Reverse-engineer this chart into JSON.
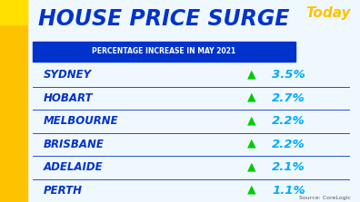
{
  "title": "HOUSE PRICE SURGE",
  "subtitle": "PERCENTAGE INCREASE IN MAY 2021",
  "cities": [
    "SYDNEY",
    "HOBART",
    "MELBOURNE",
    "BRISBANE",
    "ADELAIDE",
    "PERTH"
  ],
  "values": [
    "3.5%",
    "2.7%",
    "2.2%",
    "2.2%",
    "2.1%",
    "1.1%"
  ],
  "source": "Source: CoreLogic",
  "bg_color": "#f0f8ff",
  "left_bar_color": "#FFC200",
  "title_color": "#0033cc",
  "subtitle_bg": "#0033cc",
  "subtitle_text_color": "#ffffff",
  "city_color": "#0033cc",
  "value_color": "#00aaff",
  "arrow_color": "#00cc00",
  "today_color": "#FFC200",
  "divider_color": "#0033cc"
}
